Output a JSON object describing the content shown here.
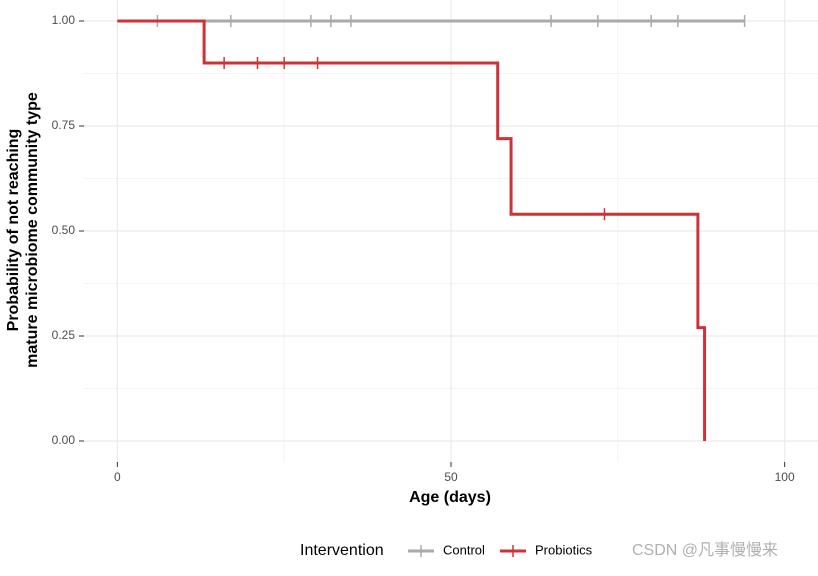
{
  "chart_data": {
    "type": "step",
    "xlabel": "Age (days)",
    "ylabel": [
      "Probability of not reaching",
      "mature microbiome community type"
    ],
    "xlim": [
      -5,
      105
    ],
    "ylim": [
      -0.05,
      1.05
    ],
    "xticks": [
      0,
      50,
      100
    ],
    "yticks": [
      {
        "value": 0,
        "label": "0.00"
      },
      {
        "value": 0.25,
        "label": "0.25"
      },
      {
        "value": 0.5,
        "label": "0.50"
      },
      {
        "value": 0.75,
        "label": "0.75"
      },
      {
        "value": 1,
        "label": "1.00"
      }
    ],
    "grid": true,
    "legend_title": "Intervention",
    "legend_position": "bottom",
    "series": [
      {
        "name": "Control",
        "color": "#aaaaaa",
        "x": [
          0,
          94
        ],
        "values": [
          1,
          1
        ],
        "censor_x": [
          6,
          17,
          29,
          32,
          35,
          65,
          72,
          80,
          84,
          94
        ],
        "censor_values": [
          1,
          1,
          1,
          1,
          1,
          1,
          1,
          1,
          1,
          1
        ]
      },
      {
        "name": "Probiotics",
        "color": "#cf3236",
        "x": [
          0,
          13,
          57,
          59,
          87,
          88
        ],
        "values": [
          1,
          0.9,
          0.72,
          0.54,
          0.27,
          0
        ],
        "censor_x": [
          16,
          21,
          25,
          30,
          73
        ],
        "censor_values": [
          0.9,
          0.9,
          0.9,
          0.9,
          0.54
        ]
      }
    ],
    "watermark": "CSDN @凡事慢慢来"
  }
}
